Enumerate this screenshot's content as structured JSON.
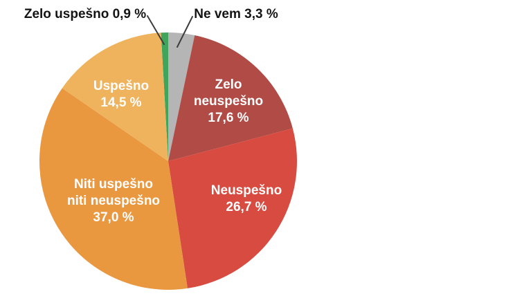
{
  "chart_data": {
    "type": "pie",
    "title": "",
    "unit": "%",
    "total": 100,
    "start_angle_deg": -3.24,
    "direction": "clockwise",
    "legend_position": "none",
    "labels_inside": true,
    "background_color": "#ffffff",
    "callout_line_color": "#3d3d3d",
    "slices": [
      {
        "key": "zelo-uspesno",
        "label": "Zelo uspešno",
        "value": 0.9,
        "display": "0,9 %",
        "color": "#3fa55b",
        "callout": "Zelo uspešno 0,9 %"
      },
      {
        "key": "ne-vem",
        "label": "Ne vem",
        "value": 3.3,
        "display": "3,3 %",
        "color": "#b5b5b5",
        "callout": "Ne vem 3,3 %"
      },
      {
        "key": "zelo-neuspesno",
        "label": "Zelo neuspešno",
        "value": 17.6,
        "display": "17,6 %",
        "color": "#b04b46",
        "inside_label": "Zelo\nneuspešno\n17,6 %"
      },
      {
        "key": "neuspesno",
        "label": "Neuspešno",
        "value": 26.7,
        "display": "26,7 %",
        "color": "#d84b41",
        "inside_label": "Neuspešno\n26,7 %"
      },
      {
        "key": "niti-uspesno-niti-neuspesno",
        "label": "Niti uspešno niti neuspešno",
        "value": 37.0,
        "display": "37,0 %",
        "color": "#e99840",
        "inside_label": "Niti uspešno\nniti neuspešno\n37,0 %"
      },
      {
        "key": "uspesno",
        "label": "Uspešno",
        "value": 14.5,
        "display": "14,5 %",
        "color": "#efb35d",
        "inside_label": "Uspešno\n14,5 %"
      }
    ]
  }
}
